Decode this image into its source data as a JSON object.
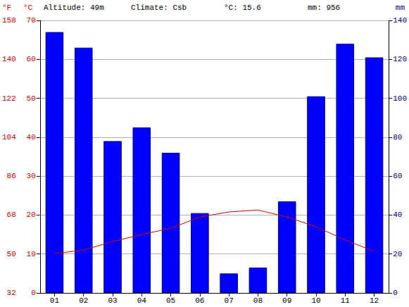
{
  "chart_data": {
    "type": "bar",
    "annotations": [
      "Altitude: 49m",
      "Climate: Csb",
      "°C: 15.6",
      "mm: 956"
    ],
    "categories": [
      "01",
      "02",
      "03",
      "04",
      "05",
      "06",
      "07",
      "08",
      "09",
      "10",
      "11",
      "12"
    ],
    "series": [
      {
        "type": "bar",
        "color": "#0000ff",
        "axis": "y2",
        "values": [
          134,
          126,
          78,
          85,
          72,
          41,
          10,
          13,
          47,
          101,
          128,
          121
        ]
      },
      {
        "type": "line",
        "color": "#cc0000",
        "axis": "y",
        "values": [
          10.1,
          11,
          13.2,
          15,
          16.6,
          19.5,
          20.8,
          21.3,
          19.5,
          17,
          13.6,
          10.7
        ]
      }
    ],
    "ylabel": "°C",
    "ylim": [
      0,
      70
    ],
    "yticks": [
      0,
      10,
      20,
      30,
      40,
      50,
      60,
      70
    ],
    "y2label": "mm",
    "y2lim": [
      0,
      140
    ],
    "y2ticks": [
      0,
      20,
      40,
      60,
      80,
      100,
      120,
      140
    ],
    "y3label": "°F",
    "y3ticks": [
      {
        "value": 0,
        "label": "32"
      },
      {
        "value": 10,
        "label": "50"
      },
      {
        "value": 20,
        "label": "68"
      },
      {
        "value": 30,
        "label": "86"
      },
      {
        "value": 40,
        "label": "104"
      },
      {
        "value": 50,
        "label": "122"
      },
      {
        "value": 60,
        "label": "140"
      },
      {
        "value": 70,
        "label": "158"
      }
    ],
    "grid": true
  }
}
